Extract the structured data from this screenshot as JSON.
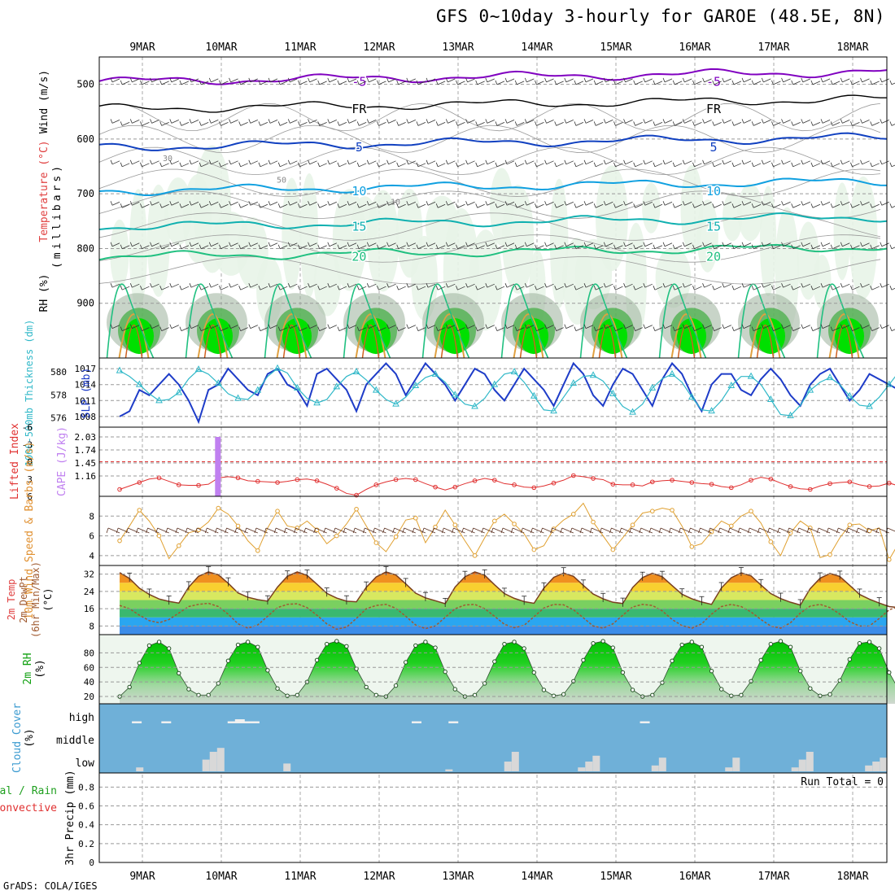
{
  "title": "GFS 0~10day 3-hourly for GAROE (48.5E, 8N)",
  "credit": "GrADS: COLA/IGES",
  "colors": {
    "temp_purple": "#8000c0",
    "temp_black": "#000000",
    "temp_blue": "#1040c0",
    "temp_lightblue": "#10a0e0",
    "temp_teal": "#10b0b0",
    "temp_green": "#20c080",
    "rh_bright": "#00e000",
    "rh_mid": "#50b050",
    "rh_gray": "#9ab09a",
    "rh_light": "#e8f4e8",
    "slp_line": "#1e3cc8",
    "thick_line": "#30b8c8",
    "li_line": "#e03030",
    "cape_bar": "#c080f0",
    "wind_line": "#e0a030",
    "barb": "#5a3020",
    "cloud_bg": "#6fb0d8",
    "cloud_bar": "#d8d8d8",
    "rh2m_fill": "#10b010"
  },
  "chart_data": {
    "x_axis": {
      "dates": [
        "9MAR",
        "10MAR",
        "11MAR",
        "12MAR",
        "13MAR",
        "14MAR",
        "15MAR",
        "16MAR",
        "17MAR",
        "18MAR"
      ],
      "step_hours": 3,
      "first_date_offset_days": 0.35
    },
    "panels": [
      {
        "name": "upper_air",
        "type": "contour",
        "ylabel": [
          "Wind (m/s)",
          "Temperature (°C)",
          "(millibars)",
          "RH (%)"
        ],
        "yticks": [
          500,
          600,
          700,
          800,
          900
        ],
        "ylim": [
          1000,
          450
        ],
        "temperature_contours": [
          {
            "label": "-5",
            "level_mb": 495,
            "color_key": "temp_purple"
          },
          {
            "label": "FR",
            "level_mb": 545,
            "color_key": "temp_black"
          },
          {
            "label": "5",
            "level_mb": 615,
            "color_key": "temp_blue"
          },
          {
            "label": "10",
            "level_mb": 695,
            "color_key": "temp_lightblue"
          },
          {
            "label": "15",
            "level_mb": 760,
            "color_key": "temp_teal"
          },
          {
            "label": "20",
            "level_mb": 815,
            "color_key": "temp_green"
          }
        ],
        "rh_labels": [
          "30",
          "50",
          "10"
        ]
      },
      {
        "name": "slp_thickness",
        "type": "line",
        "ylabel_left": "1000-500mb Thickness (dm)",
        "ylabel_right": "SLP (mb)",
        "left_ticks": [
          576,
          578,
          580
        ],
        "right_ticks": [
          1008,
          1011,
          1014,
          1017
        ],
        "series": [
          {
            "name": "SLP (mb)",
            "values": [
              1008,
              1009,
              1013,
              1012,
              1014,
              1016,
              1014,
              1011,
              1007,
              1013,
              1014,
              1017,
              1015,
              1013,
              1012,
              1016,
              1017,
              1014,
              1013,
              1010,
              1016,
              1017,
              1015,
              1013,
              1009,
              1014,
              1016,
              1018,
              1016,
              1012,
              1015,
              1018,
              1016,
              1014,
              1011,
              1014,
              1017,
              1016,
              1013,
              1011,
              1014,
              1017,
              1015,
              1013,
              1010,
              1014,
              1018,
              1016,
              1012,
              1010,
              1014,
              1017,
              1016,
              1013,
              1010,
              1015,
              1018,
              1016,
              1012,
              1009,
              1014,
              1016,
              1016,
              1013,
              1012,
              1015,
              1017,
              1015,
              1012,
              1010,
              1014,
              1016,
              1017,
              1014,
              1011,
              1013,
              1016,
              1015,
              1014,
              1013,
              1015
            ]
          },
          {
            "name": "1000-500mb Thickness (dm)",
            "values": [
              580.1,
              579.6,
              578.9,
              578.1,
              577.5,
              577.6,
              578.2,
              579.4,
              580.2,
              579.8,
              579.0,
              578.1,
              577.7,
              577.6,
              578.4,
              579.6,
              580.3,
              579.9,
              578.6,
              577.7,
              577.3,
              577.6,
              578.7,
              579.6,
              580.0,
              579.3,
              578.4,
              577.6,
              577.2,
              577.8,
              578.8,
              579.5,
              579.8,
              579.1,
              578.0,
              577.2,
              577.0,
              577.7,
              578.9,
              579.8,
              580.0,
              579.1,
              577.9,
              576.7,
              576.6,
              577.8,
              579.0,
              579.6,
              579.7,
              579.2,
              578.1,
              577.0,
              576.5,
              577.2,
              578.6,
              579.4,
              579.8,
              579.1,
              577.8,
              576.7,
              576.6,
              577.5,
              578.8,
              579.6,
              579.6,
              578.9,
              577.6,
              576.3,
              576.2,
              577.1,
              578.4,
              579.1,
              579.5,
              578.9,
              577.9,
              577.1,
              577.0,
              577.8,
              578.9,
              580.0,
              580.8
            ]
          }
        ]
      },
      {
        "name": "lifted_index_cape",
        "type": "line",
        "ylabel_left": "Lifted Index",
        "ylabel_right": "CAPE (J/kg)",
        "left_ticks": [
          "-6",
          "-3",
          "0",
          "3",
          "6"
        ],
        "right_ticks": [
          "2.03",
          "1.74",
          "1.45",
          "1.16"
        ],
        "series": [
          {
            "name": "Lifted Index",
            "values": [
              4.8,
              4.2,
              3.6,
              3.0,
              2.8,
              3.4,
              4.0,
              4.1,
              4.1,
              3.9,
              2.8,
              2.6,
              2.8,
              3.3,
              3.4,
              3.5,
              3.6,
              3.4,
              3.1,
              3.0,
              3.3,
              3.9,
              4.6,
              5.5,
              5.8,
              4.8,
              4.0,
              3.5,
              3.1,
              2.9,
              3.1,
              3.8,
              4.4,
              4.9,
              4.4,
              3.8,
              3.3,
              2.9,
              3.2,
              3.8,
              4.0,
              4.4,
              4.5,
              4.2,
              3.7,
              3.2,
              2.4,
              2.6,
              2.9,
              3.1,
              3.9,
              4.0,
              4.0,
              4.2,
              3.5,
              3.3,
              3.2,
              3.4,
              3.6,
              3.8,
              3.9,
              4.3,
              4.5,
              4.0,
              3.2,
              2.7,
              3.0,
              3.7,
              4.3,
              4.7,
              4.8,
              4.2,
              3.8,
              3.6,
              3.5,
              4.0,
              4.3,
              4.2,
              3.7,
              4.2,
              5.0
            ]
          },
          {
            "name": "CAPE (J/kg)",
            "values": [
              {
                "index": 10,
                "value": 2.03
              }
            ]
          }
        ]
      },
      {
        "name": "wind10m",
        "type": "line",
        "ylabel": "10m Wind Speed & Barbs (m/s)",
        "yticks": [
          4,
          6,
          8
        ],
        "ylim": [
          3,
          10
        ],
        "series": [
          {
            "name": "10m Wind Speed (m/s)",
            "values": [
              5.5,
              7.0,
              8.6,
              7.5,
              6.0,
              3.7,
              5.0,
              6.3,
              6.6,
              7.4,
              8.8,
              8.2,
              7.0,
              5.5,
              4.5,
              6.8,
              8.5,
              7.0,
              6.8,
              7.5,
              6.6,
              5.2,
              6.0,
              7.2,
              8.7,
              7.0,
              5.3,
              4.4,
              5.9,
              7.6,
              7.8,
              5.3,
              6.9,
              8.6,
              7.1,
              5.5,
              4.0,
              5.8,
              7.5,
              8.2,
              7.2,
              6.2,
              4.6,
              5.0,
              6.7,
              7.6,
              8.2,
              9.3,
              7.4,
              6.0,
              4.6,
              5.8,
              7.1,
              8.3,
              8.5,
              8.8,
              8.6,
              7.0,
              4.9,
              5.2,
              6.4,
              7.5,
              7.0,
              8.0,
              8.5,
              7.3,
              5.4,
              4.0,
              6.3,
              7.5,
              6.8,
              3.8,
              4.1,
              5.8,
              7.1,
              7.2,
              6.5,
              6.8,
              3.6,
              5.3,
              6.8
            ]
          }
        ]
      },
      {
        "name": "temp2m",
        "type": "area",
        "ylabel": [
          "2m Temp",
          "2m DewPt",
          "(6hr Min/Max)",
          "(°C)"
        ],
        "yticks": [
          8,
          16,
          24,
          32
        ],
        "ylim": [
          4,
          36
        ],
        "series": [
          {
            "name": "2m Temp (°C)",
            "values": [
              32.7,
              30.0,
              25.5,
              22.6,
              20.5,
              19.4,
              18.6,
              26.0,
              31.0,
              33.0,
              31.7,
              27.8,
              23.3,
              21.3,
              20.2,
              19.5,
              26.0,
              31.0,
              33.0,
              31.4,
              27.3,
              23.1,
              20.9,
              19.5,
              19.2,
              25.9,
              30.7,
              33.0,
              31.6,
              27.5,
              23.2,
              21.0,
              19.7,
              18.3,
              26.0,
              30.8,
              33.0,
              31.5,
              27.1,
              23.0,
              20.8,
              19.3,
              18.5,
              25.5,
              30.5,
              32.5,
              31.0,
              26.8,
              22.8,
              20.6,
              19.0,
              18.4,
              25.8,
              30.4,
              32.4,
              30.8,
              26.7,
              22.7,
              20.6,
              19.1,
              18.0,
              25.6,
              30.3,
              32.6,
              31.2,
              27.0,
              23.0,
              20.7,
              19.0,
              17.7,
              25.3,
              30.1,
              32.3,
              30.9,
              26.8,
              22.6,
              20.4,
              18.6,
              17.0,
              16.5,
              20.0
            ]
          },
          {
            "name": "2m DewPt (°C)",
            "values": [
              17.5,
              16.0,
              13.0,
              10.5,
              9.5,
              11.0,
              14.0,
              17.0,
              18.0,
              18.5,
              17.0,
              13.5,
              9.0,
              7.0,
              8.5,
              12.5,
              16.5,
              18.0,
              18.3,
              16.5,
              13.0,
              9.0,
              6.5,
              7.5,
              11.5,
              16.0,
              17.5,
              18.0,
              16.2,
              12.5,
              8.5,
              6.8,
              8.0,
              12.0,
              16.0,
              17.7,
              18.0,
              16.0,
              12.5,
              8.8,
              7.2,
              8.3,
              12.3,
              16.3,
              18.0,
              17.8,
              15.5,
              11.8,
              8.0,
              7.0,
              9.0,
              13.0,
              16.8,
              18.0,
              17.5,
              15.0,
              11.0,
              8.2,
              7.0,
              9.0,
              13.5,
              17.0,
              18.0,
              17.0,
              14.5,
              11.0,
              8.0,
              7.0,
              9.5,
              14.0,
              17.2,
              18.0,
              16.5,
              13.5,
              10.0,
              8.0,
              8.0,
              11.5,
              15.5,
              17.0,
              15.0
            ]
          }
        ]
      },
      {
        "name": "rh2m",
        "type": "area",
        "ylabel": [
          "2m RH",
          "(%)"
        ],
        "yticks": [
          20,
          40,
          60,
          80
        ],
        "ylim": [
          10,
          105
        ],
        "series": [
          {
            "name": "2m RH (%)",
            "values": [
              20,
              33,
              66,
              90,
              95,
              86,
              52,
              30,
              22,
              22,
              38,
              69,
              91,
              95,
              88,
              56,
              31,
              21,
              22,
              40,
              70,
              92,
              96,
              89,
              58,
              33,
              22,
              20,
              35,
              67,
              90,
              95,
              87,
              54,
              30,
              20,
              22,
              38,
              68,
              92,
              95,
              86,
              53,
              29,
              21,
              23,
              41,
              70,
              93,
              96,
              87,
              53,
              29,
              20,
              22,
              39,
              69,
              91,
              95,
              88,
              55,
              30,
              21,
              22,
              41,
              70,
              92,
              96,
              88,
              55,
              31,
              21,
              23,
              42,
              71,
              93,
              95,
              86,
              53,
              29,
              48
            ]
          }
        ]
      },
      {
        "name": "cloud_cover",
        "type": "bar",
        "ylabel": [
          "Cloud Cover",
          "(%)"
        ],
        "ytick_labels": [
          "low",
          "middle",
          "high"
        ],
        "series": [
          {
            "name": "low",
            "values": [
              {
                "index": 5,
                "value": 2
              },
              {
                "index": 14,
                "value": 6
              },
              {
                "index": 15,
                "value": 10
              },
              {
                "index": 16,
                "value": 12
              },
              {
                "index": 25,
                "value": 4
              },
              {
                "index": 47,
                "value": 1
              },
              {
                "index": 55,
                "value": 5
              },
              {
                "index": 56,
                "value": 10
              },
              {
                "index": 65,
                "value": 2
              },
              {
                "index": 66,
                "value": 5
              },
              {
                "index": 67,
                "value": 8
              },
              {
                "index": 75,
                "value": 3
              },
              {
                "index": 76,
                "value": 7
              },
              {
                "index": 85,
                "value": 2
              },
              {
                "index": 86,
                "value": 7
              },
              {
                "index": 94,
                "value": 2
              },
              {
                "index": 95,
                "value": 6
              },
              {
                "index": 96,
                "value": 10
              },
              {
                "index": 104,
                "value": 3
              },
              {
                "index": 105,
                "value": 5
              },
              {
                "index": 106,
                "value": 7
              }
            ]
          },
          {
            "name": "high",
            "values": [
              {
                "index": 2,
                "value": 1
              },
              {
                "index": 6,
                "value": 1
              },
              {
                "index": 15,
                "value": 1
              },
              {
                "index": 16,
                "value": 2
              },
              {
                "index": 17,
                "value": 1
              },
              {
                "index": 18,
                "value": 1
              },
              {
                "index": 40,
                "value": 1
              },
              {
                "index": 45,
                "value": 1
              },
              {
                "index": 71,
                "value": 1
              }
            ]
          }
        ]
      },
      {
        "name": "precip",
        "type": "bar",
        "ylabel": [
          "Total / Rain",
          "Convective",
          "3hr Precip (mm)"
        ],
        "yticks": [
          0,
          0.2,
          0.4,
          0.6,
          0.8
        ],
        "ylim": [
          0,
          0.95
        ],
        "run_total": "Run Total = 0",
        "values": []
      }
    ]
  }
}
